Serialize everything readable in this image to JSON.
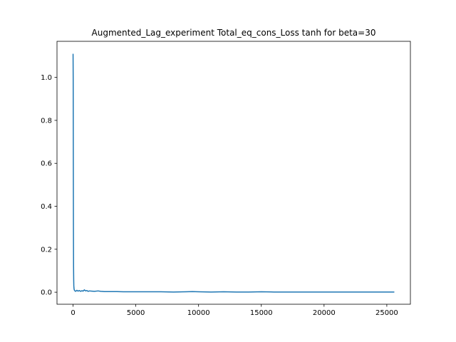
{
  "chart_data": {
    "type": "line",
    "title": "Augmented_Lag_experiment Total_eq_cons_Loss tanh for beta=30",
    "xlabel": "",
    "ylabel": "",
    "xlim": [
      -1280,
      26880
    ],
    "ylim": [
      -0.056,
      1.168
    ],
    "xticks": [
      0,
      5000,
      10000,
      15000,
      20000,
      25000
    ],
    "xtick_labels": [
      "0",
      "5000",
      "10000",
      "15000",
      "20000",
      "25000"
    ],
    "yticks": [
      0.0,
      0.2,
      0.4,
      0.6,
      0.8,
      1.0
    ],
    "ytick_labels": [
      "0.0",
      "0.2",
      "0.4",
      "0.6",
      "0.8",
      "1.0"
    ],
    "grid": false,
    "legend": "none",
    "series": [
      {
        "color": "#1f77b4",
        "x": [
          0,
          10,
          20,
          30,
          40,
          50,
          60,
          80,
          100,
          150,
          200,
          300,
          400,
          500,
          600,
          700,
          800,
          900,
          1000,
          1100,
          1200,
          1300,
          1500,
          1700,
          2000,
          2200,
          2500,
          3000,
          3500,
          4000,
          5000,
          6000,
          7000,
          8000,
          9000,
          9500,
          10000,
          11000,
          12000,
          13000,
          14000,
          15000,
          16000,
          17000,
          18000,
          19000,
          20000,
          21000,
          22000,
          23000,
          24000,
          25000,
          25600
        ],
        "y": [
          1.11,
          1.0,
          0.6,
          0.3,
          0.12,
          0.06,
          0.03,
          0.015,
          0.01,
          0.006,
          0.004,
          0.009,
          0.005,
          0.008,
          0.004,
          0.007,
          0.005,
          0.011,
          0.006,
          0.008,
          0.004,
          0.006,
          0.005,
          0.004,
          0.006,
          0.004,
          0.003,
          0.003,
          0.003,
          0.002,
          0.002,
          0.002,
          0.002,
          0.001,
          0.002,
          0.003,
          0.002,
          0.001,
          0.002,
          0.001,
          0.001,
          0.002,
          0.001,
          0.001,
          0.001,
          0.001,
          0.001,
          0.001,
          0.001,
          0.001,
          0.001,
          0.001,
          0.001
        ]
      }
    ]
  }
}
